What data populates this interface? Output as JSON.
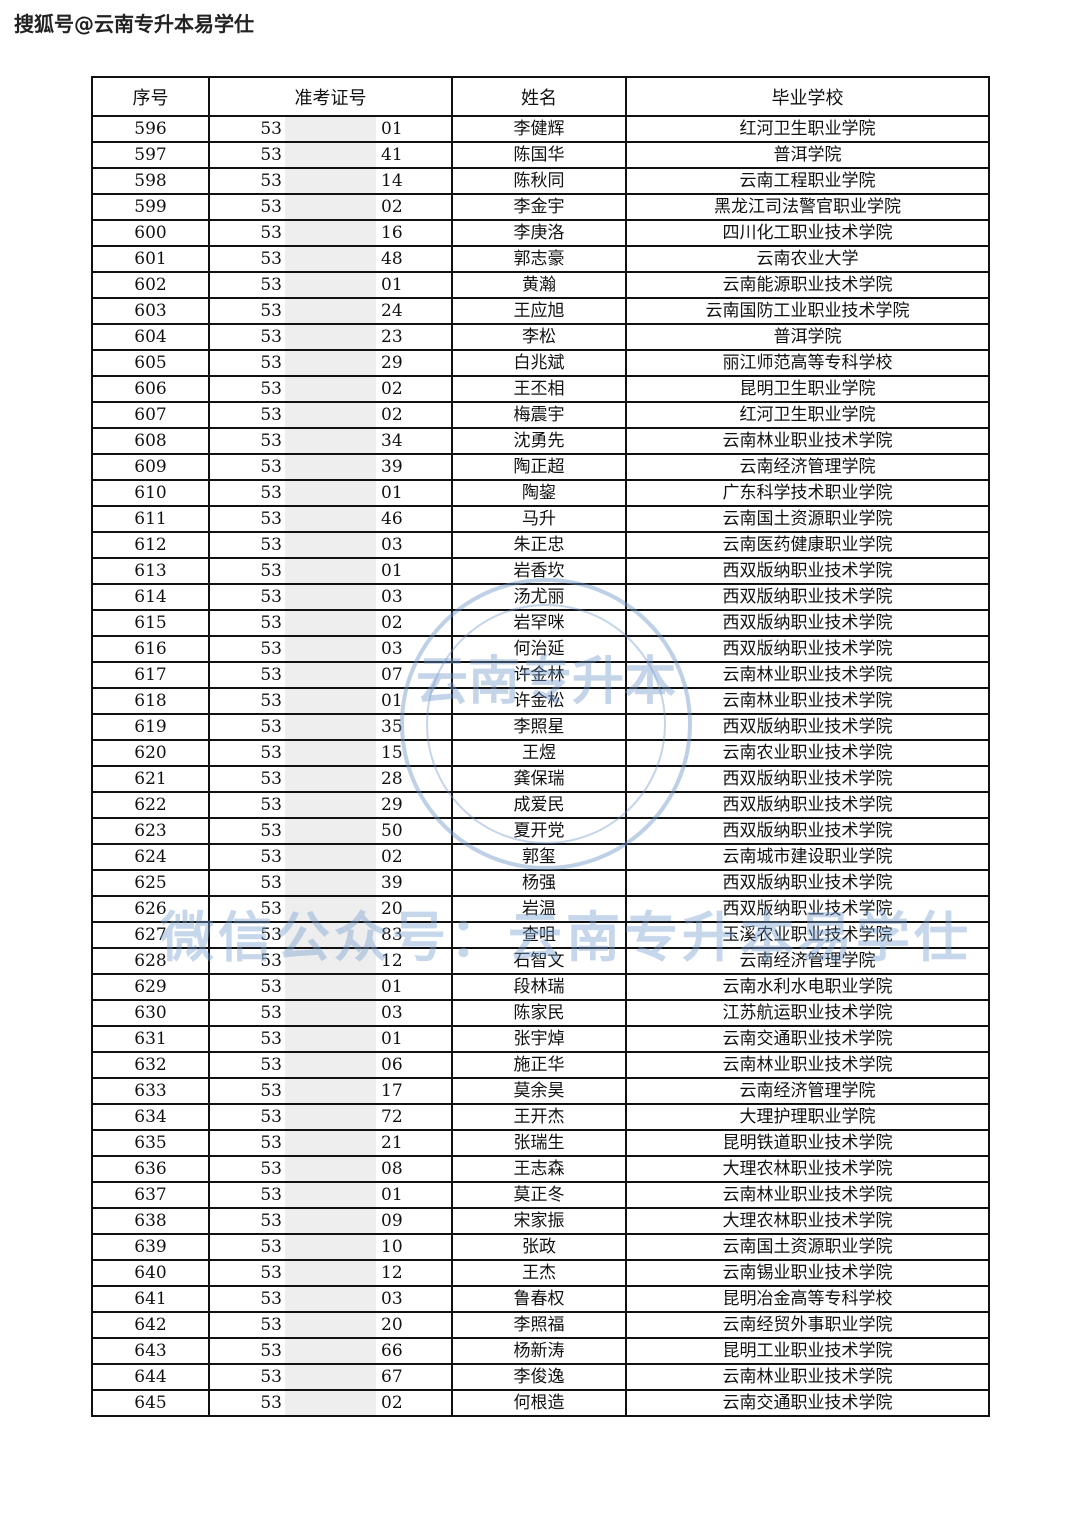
{
  "source_label": "搜狐号@云南专升本易学仕",
  "watermark": "微信公众号：云南专升本易学仕",
  "stamp_text": "云南专升本",
  "stamp_color": "#6e96c8",
  "table": {
    "headers": [
      "序号",
      "准考证号",
      "姓名",
      "毕业学校"
    ],
    "id_prefix": "53",
    "rows": [
      [
        "596",
        "01",
        "李健辉",
        "红河卫生职业学院"
      ],
      [
        "597",
        "41",
        "陈国华",
        "普洱学院"
      ],
      [
        "598",
        "14",
        "陈秋同",
        "云南工程职业学院"
      ],
      [
        "599",
        "02",
        "李金宇",
        "黑龙江司法警官职业学院"
      ],
      [
        "600",
        "16",
        "李庚洛",
        "四川化工职业技术学院"
      ],
      [
        "601",
        "48",
        "郭志豪",
        "云南农业大学"
      ],
      [
        "602",
        "01",
        "黄瀚",
        "云南能源职业技术学院"
      ],
      [
        "603",
        "24",
        "王应旭",
        "云南国防工业职业技术学院"
      ],
      [
        "604",
        "23",
        "李松",
        "普洱学院"
      ],
      [
        "605",
        "29",
        "白兆斌",
        "丽江师范高等专科学校"
      ],
      [
        "606",
        "02",
        "王丕相",
        "昆明卫生职业学院"
      ],
      [
        "607",
        "02",
        "梅震宇",
        "红河卫生职业学院"
      ],
      [
        "608",
        "34",
        "沈勇先",
        "云南林业职业技术学院"
      ],
      [
        "609",
        "39",
        "陶正超",
        "云南经济管理学院"
      ],
      [
        "610",
        "01",
        "陶鋆",
        "广东科学技术职业学院"
      ],
      [
        "611",
        "46",
        "马升",
        "云南国土资源职业学院"
      ],
      [
        "612",
        "03",
        "朱正忠",
        "云南医药健康职业学院"
      ],
      [
        "613",
        "01",
        "岩香坎",
        "西双版纳职业技术学院"
      ],
      [
        "614",
        "03",
        "汤尤丽",
        "西双版纳职业技术学院"
      ],
      [
        "615",
        "02",
        "岩罕咪",
        "西双版纳职业技术学院"
      ],
      [
        "616",
        "03",
        "何治延",
        "西双版纳职业技术学院"
      ],
      [
        "617",
        "07",
        "许金林",
        "云南林业职业技术学院"
      ],
      [
        "618",
        "01",
        "许金松",
        "云南林业职业技术学院"
      ],
      [
        "619",
        "35",
        "李照星",
        "西双版纳职业技术学院"
      ],
      [
        "620",
        "15",
        "王煜",
        "云南农业职业技术学院"
      ],
      [
        "621",
        "28",
        "龚保瑞",
        "西双版纳职业技术学院"
      ],
      [
        "622",
        "29",
        "成爱民",
        "西双版纳职业技术学院"
      ],
      [
        "623",
        "50",
        "夏开党",
        "西双版纳职业技术学院"
      ],
      [
        "624",
        "02",
        "郭玺",
        "云南城市建设职业学院"
      ],
      [
        "625",
        "39",
        "杨强",
        "西双版纳职业技术学院"
      ],
      [
        "626",
        "20",
        "岩温",
        "西双版纳职业技术学院"
      ],
      [
        "627",
        "83",
        "查咀",
        "玉溪农业职业技术学院"
      ],
      [
        "628",
        "12",
        "石智文",
        "云南经济管理学院"
      ],
      [
        "629",
        "01",
        "段林瑞",
        "云南水利水电职业学院"
      ],
      [
        "630",
        "03",
        "陈家民",
        "江苏航运职业技术学院"
      ],
      [
        "631",
        "01",
        "张宇焯",
        "云南交通职业技术学院"
      ],
      [
        "632",
        "06",
        "施正华",
        "云南林业职业技术学院"
      ],
      [
        "633",
        "17",
        "莫余昊",
        "云南经济管理学院"
      ],
      [
        "634",
        "72",
        "王开杰",
        "大理护理职业学院"
      ],
      [
        "635",
        "21",
        "张瑞生",
        "昆明铁道职业技术学院"
      ],
      [
        "636",
        "08",
        "王志森",
        "大理农林职业技术学院"
      ],
      [
        "637",
        "01",
        "莫正冬",
        "云南林业职业技术学院"
      ],
      [
        "638",
        "09",
        "宋家振",
        "大理农林职业技术学院"
      ],
      [
        "639",
        "10",
        "张政",
        "云南国土资源职业学院"
      ],
      [
        "640",
        "12",
        "王杰",
        "云南锡业职业技术学院"
      ],
      [
        "641",
        "03",
        "鲁春权",
        "昆明冶金高等专科学校"
      ],
      [
        "642",
        "20",
        "李照福",
        "云南经贸外事职业学院"
      ],
      [
        "643",
        "66",
        "杨新涛",
        "昆明工业职业技术学院"
      ],
      [
        "644",
        "67",
        "李俊逸",
        "云南林业职业技术学院"
      ],
      [
        "645",
        "02",
        "何根造",
        "云南交通职业技术学院"
      ]
    ]
  }
}
